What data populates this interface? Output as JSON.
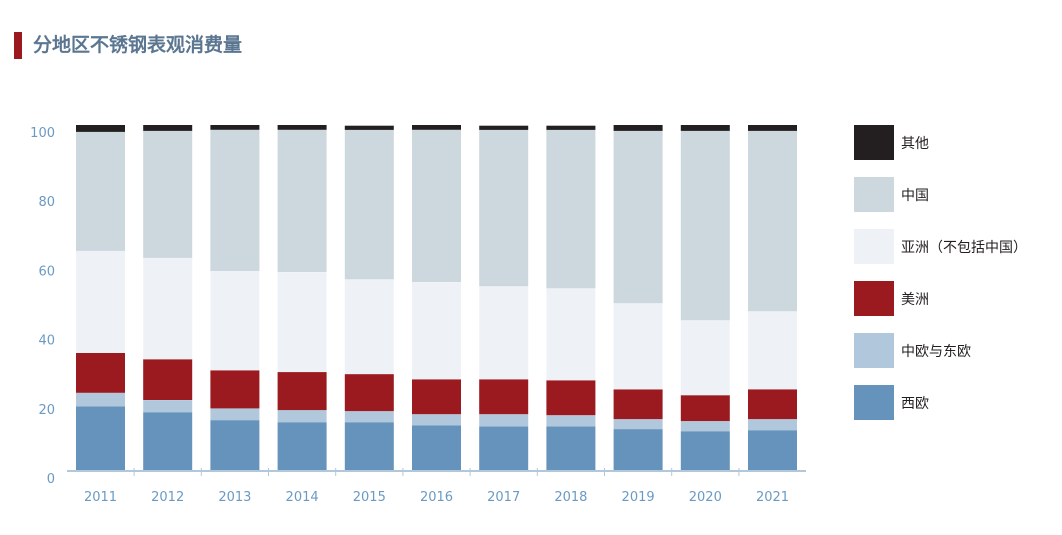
{
  "title": "分地区不锈钢表观消费量",
  "colors": {
    "title_bar": "#9b1a1f",
    "title_text": "#5b7691",
    "axis": "#b0c7dc",
    "tick_text": "#6a9ac4"
  },
  "chart_data": {
    "type": "bar",
    "stacked": true,
    "title": "分地区不锈钢表观消费量",
    "xlabel": "",
    "ylabel": "",
    "ylim": [
      0,
      100
    ],
    "yticks": [
      0,
      20,
      40,
      60,
      80,
      100
    ],
    "grid": false,
    "legend_position": "right",
    "categories": [
      "2011",
      "2012",
      "2013",
      "2014",
      "2015",
      "2016",
      "2017",
      "2018",
      "2019",
      "2020",
      "2021"
    ],
    "series": [
      {
        "name": "西欧",
        "color": "#6693bc",
        "values": [
          18.7,
          17.0,
          14.7,
          14.1,
          14.1,
          13.2,
          12.9,
          12.9,
          12.1,
          11.5,
          11.8
        ]
      },
      {
        "name": "中欧与东欧",
        "color": "#b0c7dc",
        "values": [
          3.9,
          3.5,
          3.4,
          3.5,
          3.2,
          3.2,
          3.5,
          3.2,
          2.9,
          2.9,
          3.2
        ]
      },
      {
        "name": "美洲",
        "color": "#9b1a1f",
        "values": [
          11.5,
          11.8,
          11.0,
          11.0,
          10.7,
          10.1,
          10.1,
          10.1,
          8.6,
          7.5,
          8.6
        ]
      },
      {
        "name": "亚洲（不包括中国）",
        "color": "#eef2f7",
        "values": [
          29.5,
          29.3,
          28.7,
          28.9,
          27.4,
          28.1,
          26.9,
          26.6,
          24.9,
          21.7,
          22.6
        ]
      },
      {
        "name": "中国",
        "color": "#ccd7de",
        "values": [
          34.4,
          36.7,
          40.8,
          41.1,
          43.2,
          44.0,
          45.2,
          45.8,
          49.8,
          54.7,
          52.1
        ]
      },
      {
        "name": "其他",
        "color": "#231f20",
        "values": [
          2.0,
          1.7,
          1.4,
          1.4,
          1.2,
          1.4,
          1.2,
          1.2,
          1.7,
          1.7,
          1.7
        ]
      }
    ]
  },
  "legend": [
    {
      "label": "其他",
      "color": "#231f20"
    },
    {
      "label": "中国",
      "color": "#ccd7de"
    },
    {
      "label": "亚洲（不包括中国）",
      "color": "#eef2f7"
    },
    {
      "label": "美洲",
      "color": "#9b1a1f"
    },
    {
      "label": "中欧与东欧",
      "color": "#b0c7dc"
    },
    {
      "label": "西欧",
      "color": "#6693bc"
    }
  ]
}
